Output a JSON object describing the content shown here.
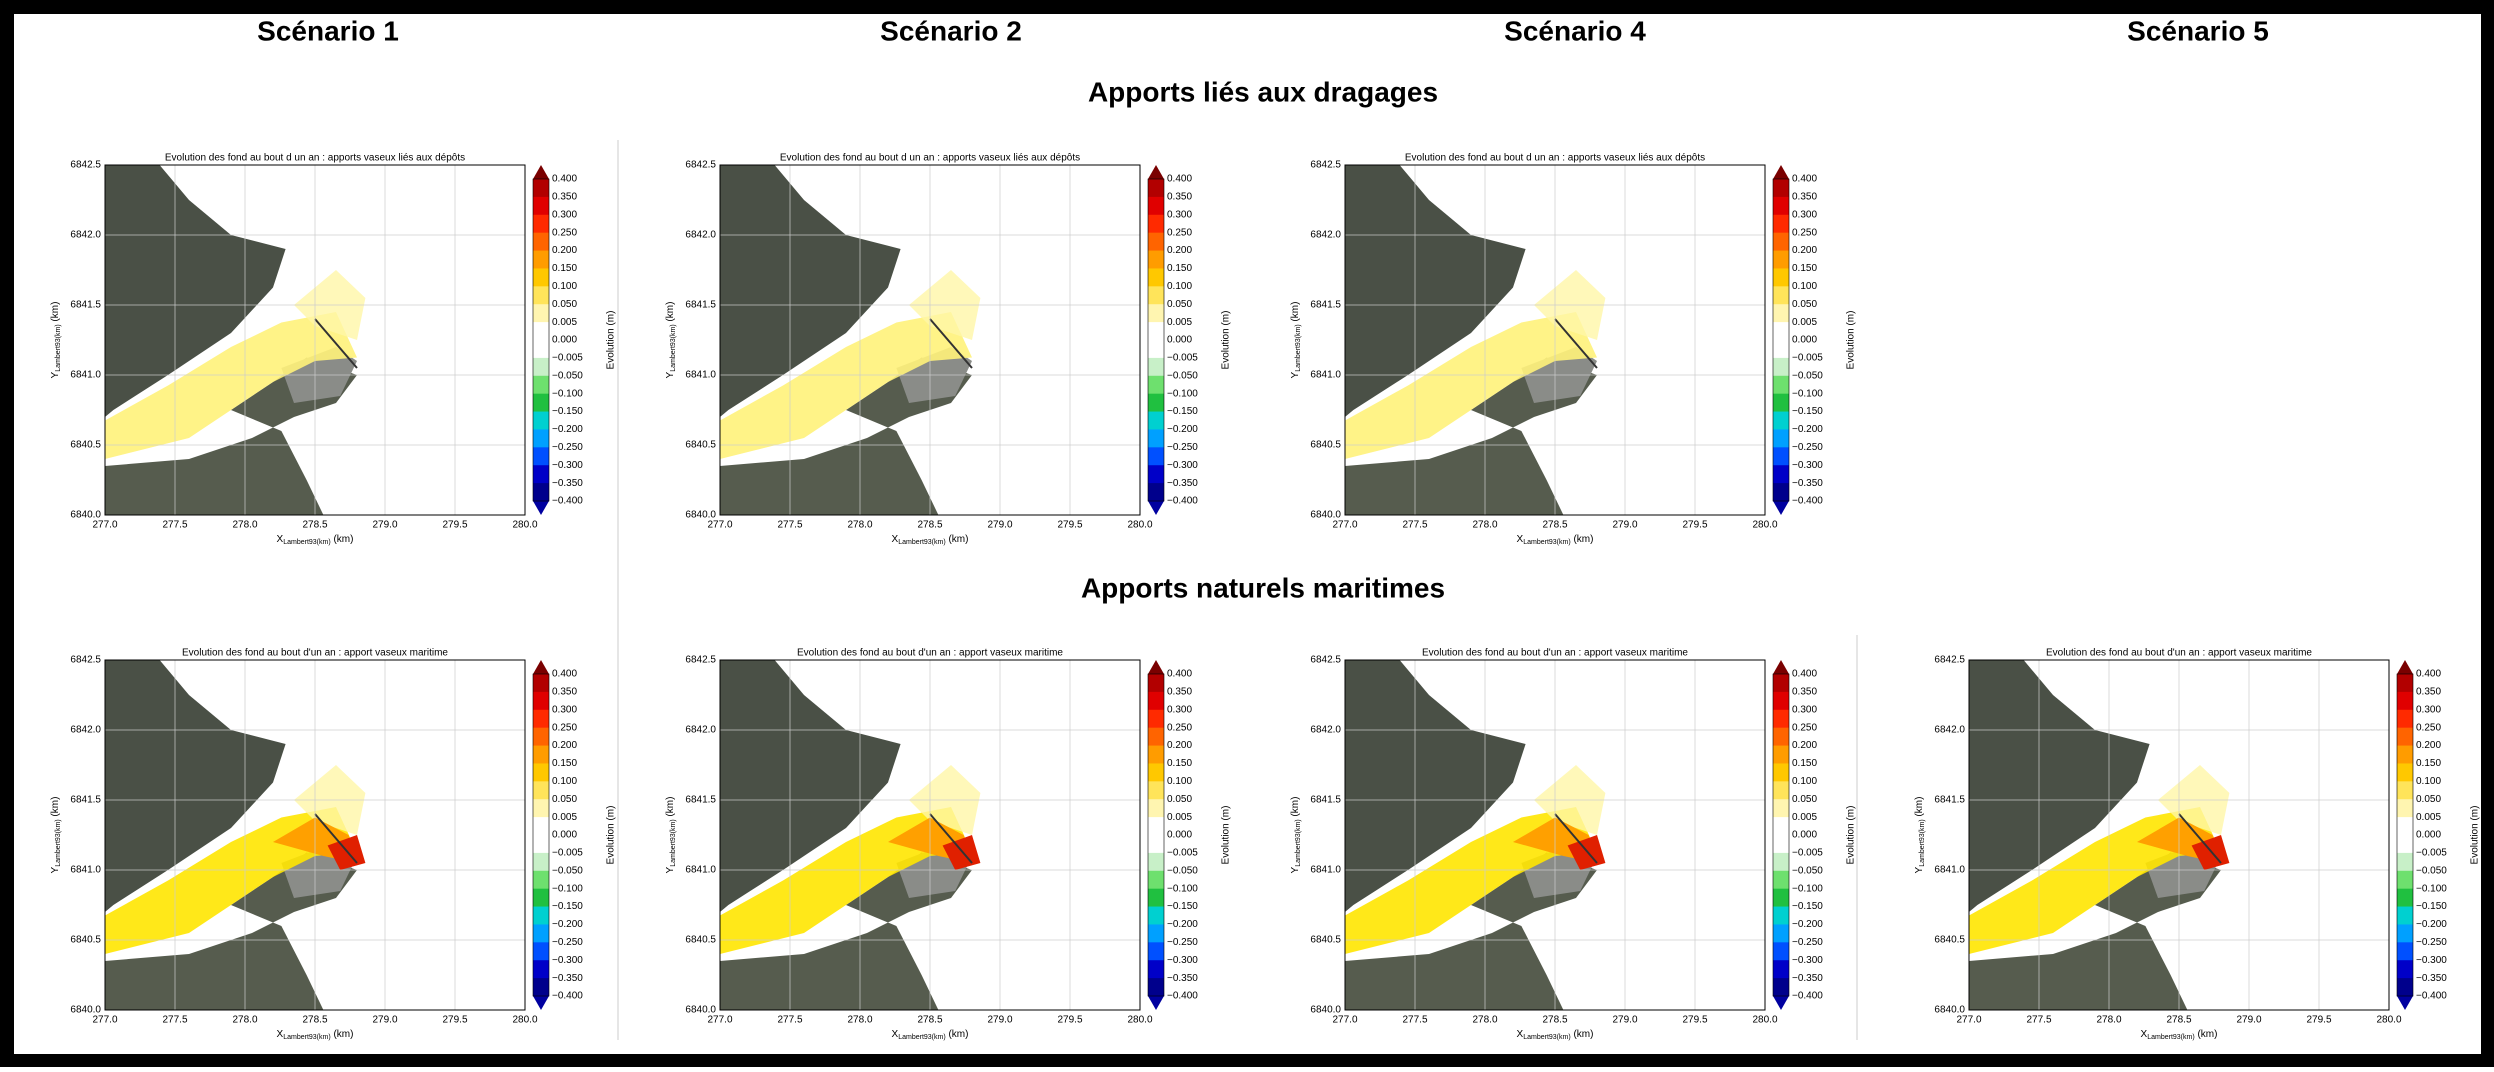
{
  "columns": [
    "Scénario 1",
    "Scénario 2",
    "Scénario 4",
    "Scénario 5"
  ],
  "sections": [
    {
      "title": "Apports liés aux dragages",
      "panels": [
        {
          "title": "Evolution des fond au bout d un an : apports vaseux liés aux dépôts"
        },
        {
          "title": "Evolution des fond au bout d un an : apports vaseux liés aux dépôts"
        },
        {
          "title": "Evolution des fond au bout d un an : apports vaseux liés aux dépôts"
        }
      ]
    },
    {
      "title": "Apports naturels maritimes",
      "panels": [
        {
          "title": "Evolution des fond au bout d'un an : apport vaseux maritime"
        },
        {
          "title": "Evolution des fond au bout d'un an : apport vaseux maritime"
        },
        {
          "title": "Evolution des fond au bout d'un an : apport vaseux maritime"
        },
        {
          "title": "Evolution des fond au bout d'un an : apport vaseux maritime"
        }
      ]
    }
  ],
  "axes": {
    "xlabel": "X",
    "xlabel_sub": "Lambert93(km)",
    "xlabel_unit": " (km)",
    "ylabel": "Y",
    "ylabel_sub": "Lambert93(km)",
    "ylabel_unit": " (km)",
    "xticks": [
      "277.0",
      "277.5",
      "278.0",
      "278.5",
      "279.0",
      "279.5",
      "280.0"
    ],
    "yticks": [
      "6840.0",
      "6840.5",
      "6841.0",
      "6841.5",
      "6842.0",
      "6842.5"
    ]
  },
  "colorbar": {
    "label": "Evolution (m)",
    "ticks": [
      "0.400",
      "0.350",
      "0.300",
      "0.250",
      "0.200",
      "0.150",
      "0.100",
      "0.050",
      "0.005",
      "0.000",
      "−0.005",
      "−0.050",
      "−0.100",
      "−0.150",
      "−0.200",
      "−0.250",
      "−0.300",
      "−0.350",
      "−0.400"
    ]
  }
}
